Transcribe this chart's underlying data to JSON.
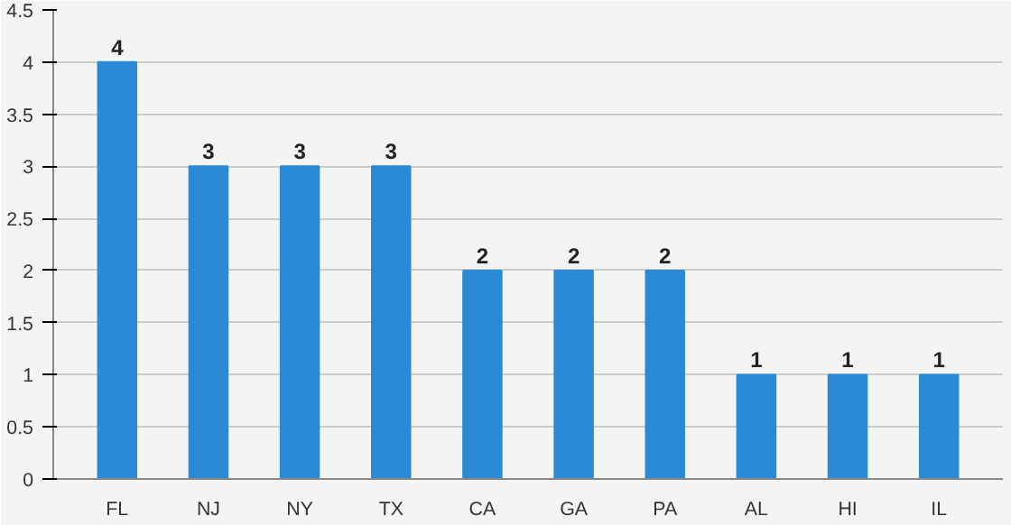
{
  "chart_data": {
    "type": "bar",
    "categories": [
      "FL",
      "NJ",
      "NY",
      "TX",
      "CA",
      "GA",
      "PA",
      "AL",
      "HI",
      "IL"
    ],
    "values": [
      4,
      3,
      3,
      3,
      2,
      2,
      2,
      1,
      1,
      1
    ],
    "color": "#2a8ad6",
    "ylim": [
      0,
      4.5
    ],
    "yticks": [
      0,
      0.5,
      1,
      1.5,
      2,
      2.5,
      3,
      3.5,
      4,
      4.5
    ],
    "grid": "y",
    "data_labels": true
  }
}
